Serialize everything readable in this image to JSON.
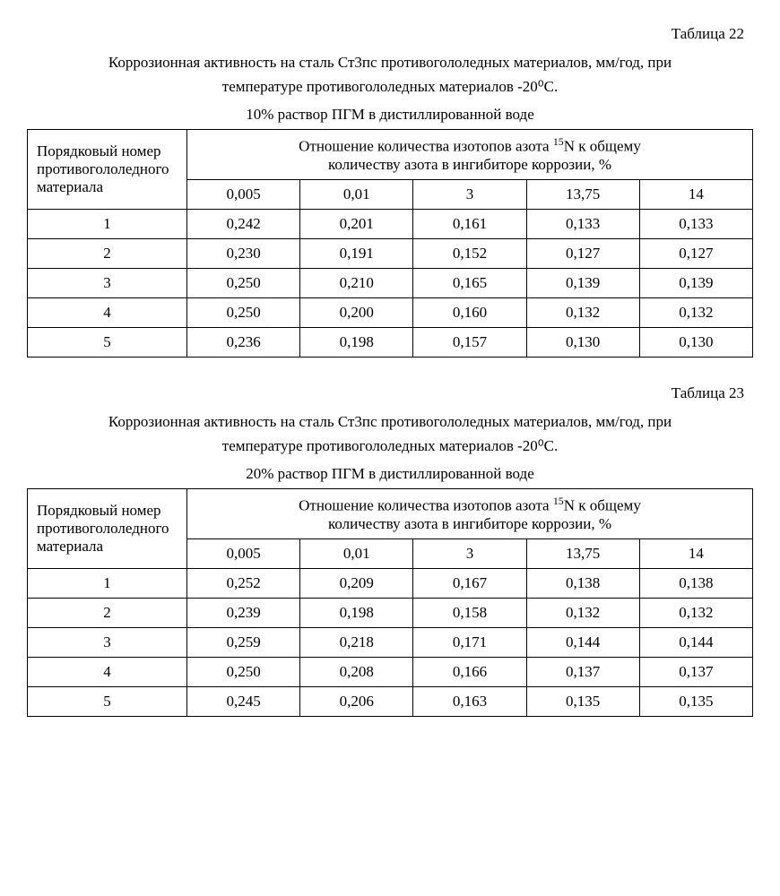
{
  "tables": [
    {
      "label": "Таблица 22",
      "caption_line1": "Коррозионная активность на сталь Ст3пс противогололедных материалов, мм/год, при",
      "caption_line2": "температуре противогололедных материалов -20⁰С.",
      "subtitle": "10% раствор ПГМ в дистиллированной воде",
      "row_header_l1": "Порядковый номер",
      "row_header_l2": "противогололедного",
      "row_header_l3": "материала",
      "col_group_l1_pre": "Отношение количества изотопов азота ",
      "col_group_l1_iso": "15",
      "col_group_l1_mid": "N  к общему",
      "col_group_l2": "количеству азота в ингибиторе коррозии, %",
      "col_headers": [
        "0,005",
        "0,01",
        "3",
        "13,75",
        "14"
      ],
      "rows": [
        {
          "id": "1",
          "v": [
            "0,242",
            "0,201",
            "0,161",
            "0,133",
            "0,133"
          ]
        },
        {
          "id": "2",
          "v": [
            "0,230",
            "0,191",
            "0,152",
            "0,127",
            "0,127"
          ]
        },
        {
          "id": "3",
          "v": [
            "0,250",
            "0,210",
            "0,165",
            "0,139",
            "0,139"
          ]
        },
        {
          "id": "4",
          "v": [
            "0,250",
            "0,200",
            "0,160",
            "0,132",
            "0,132"
          ]
        },
        {
          "id": "5",
          "v": [
            "0,236",
            "0,198",
            "0,157",
            "0,130",
            "0,130"
          ]
        }
      ]
    },
    {
      "label": "Таблица 23",
      "caption_line1": "Коррозионная активность на сталь Ст3пс противогололедных материалов, мм/год, при",
      "caption_line2": "температуре противогололедных материалов -20⁰С.",
      "subtitle": "20% раствор ПГМ в дистиллированной воде",
      "row_header_l1": "Порядковый номер",
      "row_header_l2": "противогололедного",
      "row_header_l3": "материала",
      "col_group_l1_pre": "Отношение количества изотопов азота ",
      "col_group_l1_iso": "15",
      "col_group_l1_mid": "N  к общему",
      "col_group_l2": "количеству азота в ингибиторе коррозии, %",
      "col_headers": [
        "0,005",
        "0,01",
        "3",
        "13,75",
        "14"
      ],
      "rows": [
        {
          "id": "1",
          "v": [
            "0,252",
            "0,209",
            "0,167",
            "0,138",
            "0,138"
          ]
        },
        {
          "id": "2",
          "v": [
            "0,239",
            "0,198",
            "0,158",
            "0,132",
            "0,132"
          ]
        },
        {
          "id": "3",
          "v": [
            "0,259",
            "0,218",
            "0,171",
            "0,144",
            "0,144"
          ]
        },
        {
          "id": "4",
          "v": [
            "0,250",
            "0,208",
            "0,166",
            "0,137",
            "0,137"
          ]
        },
        {
          "id": "5",
          "v": [
            "0,245",
            "0,206",
            "0,163",
            "0,135",
            "0,135"
          ]
        }
      ]
    }
  ]
}
